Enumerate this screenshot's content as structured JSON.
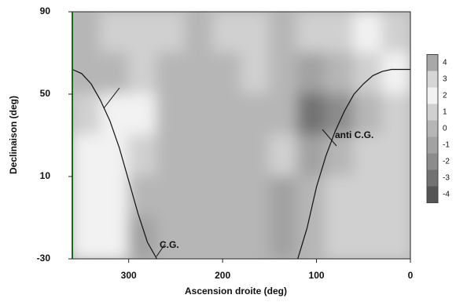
{
  "chart_data": {
    "type": "heatmap",
    "x_label": "Ascension droite (deg)",
    "y_label": "Declinaison (deg)",
    "xlim": [
      360,
      0
    ],
    "xticks": [
      300,
      200,
      100,
      0
    ],
    "ylim": [
      -30,
      90
    ],
    "yticks": [
      -30,
      10,
      50,
      90
    ],
    "x": [
      345,
      315,
      285,
      255,
      225,
      195,
      165,
      135,
      105,
      75,
      45,
      15
    ],
    "y": [
      80,
      60,
      40,
      20,
      0,
      -20
    ],
    "z": [
      [
        0,
        1,
        1,
        1,
        0,
        1,
        1,
        0,
        1,
        1,
        2,
        1
      ],
      [
        0,
        0,
        1,
        0,
        0,
        0,
        1,
        0,
        -1,
        0,
        1,
        2
      ],
      [
        1,
        2,
        2,
        0,
        0,
        0,
        0,
        0,
        -3,
        -2,
        0,
        1
      ],
      [
        2,
        2,
        1,
        0,
        0,
        0,
        0,
        1,
        -1,
        0,
        1,
        1
      ],
      [
        2,
        2,
        0,
        0,
        0,
        0,
        0,
        -1,
        0,
        1,
        1,
        1
      ],
      [
        2,
        2,
        -1,
        0,
        0,
        0,
        0,
        -1,
        0,
        1,
        1,
        1
      ]
    ],
    "colorbar": {
      "ticks": [
        4,
        3,
        2,
        1,
        0,
        -1,
        -2,
        -3,
        -4
      ],
      "colors": [
        "#a8a8a8",
        "#d6d6d6",
        "#f2f2f2",
        "#d0d0d0",
        "#b6b6b6",
        "#a2a2a2",
        "#8c8c8c",
        "#727272",
        "#555555"
      ]
    },
    "curves": [
      {
        "x": [
          360,
          350,
          340,
          330,
          320,
          310,
          300,
          290,
          280,
          270
        ],
        "y": [
          62,
          60,
          55,
          47,
          37,
          24,
          8,
          -8,
          -22,
          -30
        ]
      },
      {
        "x": [
          120,
          110,
          100,
          90,
          80,
          70,
          60,
          50,
          40,
          30,
          20,
          10,
          0
        ],
        "y": [
          -30,
          -15,
          5,
          20,
          32,
          42,
          50,
          55,
          59,
          61,
          62,
          62,
          62
        ]
      }
    ],
    "annotations": [
      "C.G.",
      "anti C.G."
    ]
  }
}
